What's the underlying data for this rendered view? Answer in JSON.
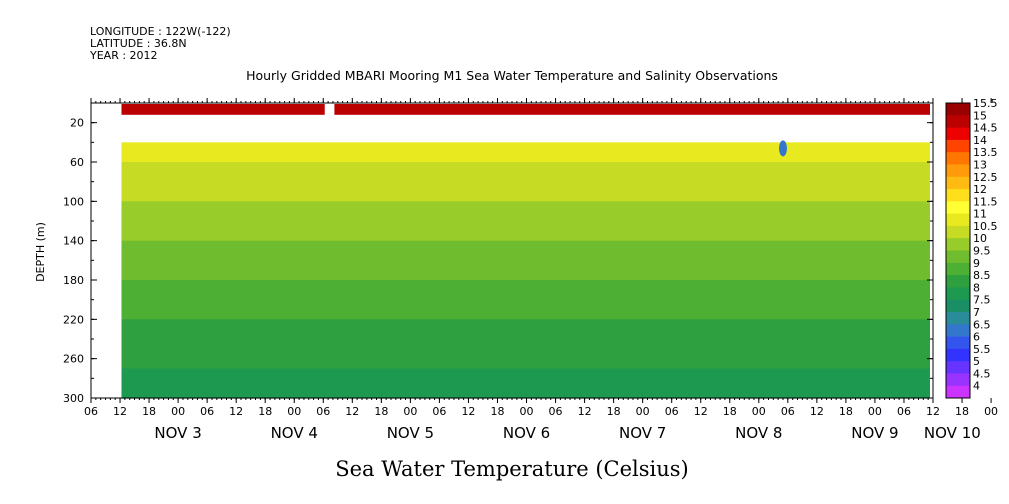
{
  "header": {
    "longitude": "LONGITUDE : 122W(-122)",
    "latitude": "LATITUDE : 36.8N",
    "year": "YEAR : 2012"
  },
  "chart_data": {
    "type": "heatmap",
    "title": "Hourly Gridded MBARI Mooring M1 Sea Water Temperature and Salinity Observations",
    "xlabel": "",
    "ylabel": "DEPTH (m)",
    "colorbar_label": "Sea Water Temperature (Celsius)",
    "x_hour_ticks": [
      "06",
      "12",
      "18",
      "00",
      "06",
      "12",
      "18",
      "00",
      "06",
      "12",
      "18",
      "00",
      "06",
      "12",
      "18",
      "00",
      "06",
      "12",
      "18",
      "00",
      "06",
      "12",
      "18",
      "00",
      "06",
      "12",
      "18",
      "00",
      "06",
      "12",
      "18",
      "00",
      "06"
    ],
    "x_day_labels": [
      {
        "label": "NOV  3",
        "hour": 18
      },
      {
        "label": "NOV  4",
        "hour": 42
      },
      {
        "label": "NOV  5",
        "hour": 66
      },
      {
        "label": "NOV  6",
        "hour": 90
      },
      {
        "label": "NOV  7",
        "hour": 114
      },
      {
        "label": "NOV  8",
        "hour": 138
      },
      {
        "label": "NOV  9",
        "hour": 162
      },
      {
        "label": "NOV 10",
        "hour": 178
      }
    ],
    "xlim_hours": [
      0,
      174
    ],
    "ylim_depth": [
      0,
      300
    ],
    "y_ticks": [
      20,
      60,
      100,
      140,
      180,
      220,
      260,
      300
    ],
    "y_reversed": true,
    "colorbar_levels": [
      4,
      4.5,
      5,
      5.5,
      6,
      6.5,
      7,
      7.5,
      8,
      8.5,
      9,
      9.5,
      10,
      10.5,
      11,
      11.5,
      12,
      12.5,
      13,
      13.5,
      14,
      14.5,
      15,
      15.5
    ],
    "colorbar_labels": [
      "15.5",
      "15",
      "14.5",
      "14",
      "13.5",
      "13",
      "12.5",
      "12",
      "11.5",
      "11",
      "10.5",
      "10",
      "9.5",
      "9",
      "8.5",
      "8",
      "7.5",
      "7",
      "6.5",
      "6",
      "5.5",
      "5",
      "4.5",
      "4"
    ],
    "colorbar_colors": [
      "#cc33ff",
      "#9933ff",
      "#6633ff",
      "#3333ff",
      "#3355ee",
      "#3377cc",
      "#2a8c99",
      "#1a8f66",
      "#1e9950",
      "#2ea03f",
      "#4daf33",
      "#6fbd2e",
      "#97cc2a",
      "#c6dc24",
      "#e8ea1f",
      "#ffff33",
      "#ffde1c",
      "#ffbb12",
      "#ff9a0a",
      "#ff7700",
      "#ff4400",
      "#ee0000",
      "#bb0000",
      "#990000"
    ],
    "depth_profile": [
      {
        "depth": 1,
        "temperature": 14.5
      },
      {
        "depth": 40,
        "temperature": 11.5
      },
      {
        "depth": 60,
        "temperature": 11.0
      },
      {
        "depth": 80,
        "temperature": 10.8
      },
      {
        "depth": 100,
        "temperature": 10.5
      },
      {
        "depth": 120,
        "temperature": 10.2
      },
      {
        "depth": 140,
        "temperature": 10.0
      },
      {
        "depth": 160,
        "temperature": 9.7
      },
      {
        "depth": 180,
        "temperature": 9.5
      },
      {
        "depth": 200,
        "temperature": 9.2
      },
      {
        "depth": 220,
        "temperature": 9.0
      },
      {
        "depth": 240,
        "temperature": 8.8
      },
      {
        "depth": 260,
        "temperature": 8.6
      },
      {
        "depth": 280,
        "temperature": 8.4
      },
      {
        "depth": 300,
        "temperature": 8.3
      }
    ],
    "surface_gap_hours": [
      42,
      44
    ],
    "data_start_hour": 0,
    "anomaly": {
      "hour": 143,
      "depth": 40,
      "temperature": 6.5
    }
  }
}
